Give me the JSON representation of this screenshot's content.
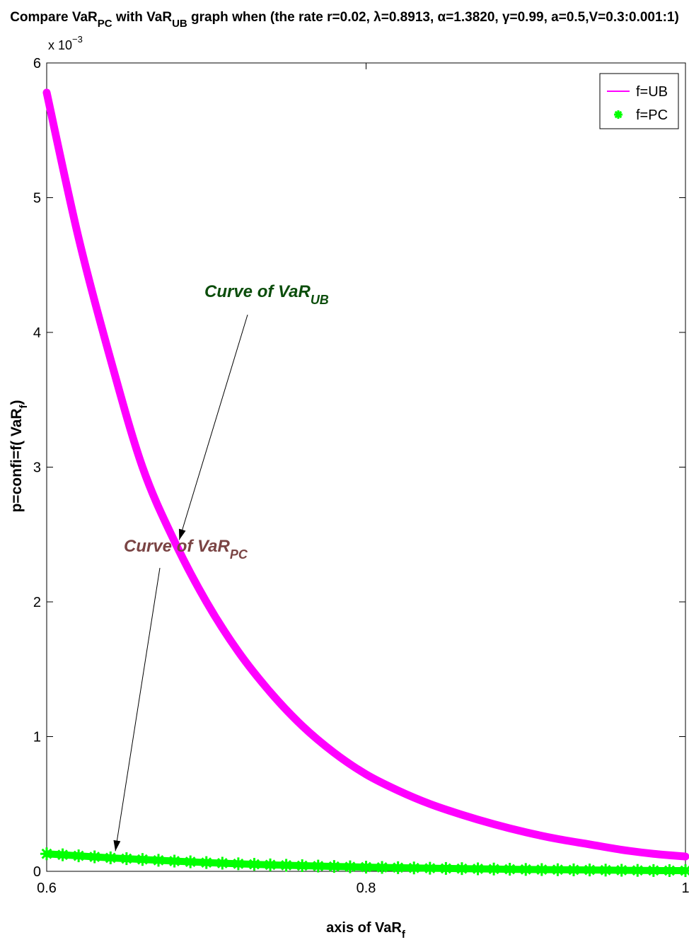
{
  "chart_data": {
    "type": "line",
    "title_parts": [
      "Compare VaR",
      "PC",
      " with VaR",
      "UB",
      " graph when (the rate r=0.02, λ=0.8913, α=1.3820, γ=0.99, a=0.5,V=0.3:0.001:1)"
    ],
    "xlabel": "axis of VaR",
    "xlabel_sub": "f",
    "ylabel": "p=confi=f( VaR",
    "ylabel_sub": "f",
    "ylabel_close": ")",
    "y_multiplier_base": "x 10",
    "y_multiplier_exp": "−3",
    "xlim": [
      0.6,
      1
    ],
    "ylim": [
      0,
      0.006
    ],
    "x_ticks": [
      0.6,
      0.8,
      1
    ],
    "x_tick_labels": [
      "0.6",
      "0.8",
      "1"
    ],
    "y_ticks": [
      0,
      0.001,
      0.002,
      0.003,
      0.004,
      0.005,
      0.006
    ],
    "y_tick_labels": [
      "0",
      "1",
      "2",
      "3",
      "4",
      "5",
      "6"
    ],
    "grid": false,
    "legend_position": "top-right",
    "series": [
      {
        "name": "f=UB",
        "color": "#ff00ff",
        "marker": "none",
        "x": [
          0.6,
          0.62,
          0.64,
          0.66,
          0.68,
          0.7,
          0.72,
          0.74,
          0.76,
          0.78,
          0.8,
          0.82,
          0.84,
          0.86,
          0.88,
          0.9,
          0.92,
          0.94,
          0.96,
          0.98,
          1.0
        ],
        "y": [
          0.00578,
          0.0047,
          0.0038,
          0.003,
          0.00245,
          0.002,
          0.00163,
          0.00133,
          0.00108,
          0.00088,
          0.00072,
          0.0006,
          0.0005,
          0.00042,
          0.00035,
          0.00029,
          0.00024,
          0.0002,
          0.00016,
          0.00013,
          0.00011
        ]
      },
      {
        "name": "f=PC",
        "color": "#00ff00",
        "marker": "asterisk",
        "x": [
          0.6,
          0.62,
          0.64,
          0.66,
          0.68,
          0.7,
          0.72,
          0.74,
          0.76,
          0.78,
          0.8,
          0.82,
          0.84,
          0.86,
          0.88,
          0.9,
          0.92,
          0.94,
          0.96,
          0.98,
          1.0
        ],
        "y": [
          0.00013,
          0.000115,
          0.0001,
          8.8e-05,
          7.6e-05,
          6.5e-05,
          5.6e-05,
          4.8e-05,
          4.2e-05,
          3.6e-05,
          3.1e-05,
          2.7e-05,
          2.3e-05,
          2e-05,
          1.7e-05,
          1.4e-05,
          1.2e-05,
          1e-05,
          8e-06,
          6e-06,
          5e-06
        ]
      }
    ],
    "annotations": [
      {
        "text": "Curve of VaR",
        "sub": "UB",
        "color": "#0b4d0b",
        "arrow_to": [
          0.683,
          0.00246
        ]
      },
      {
        "text": "Curve of VaR",
        "sub": "PC",
        "color": "#7a4444",
        "arrow_to": [
          0.643,
          0.00015
        ]
      }
    ]
  }
}
